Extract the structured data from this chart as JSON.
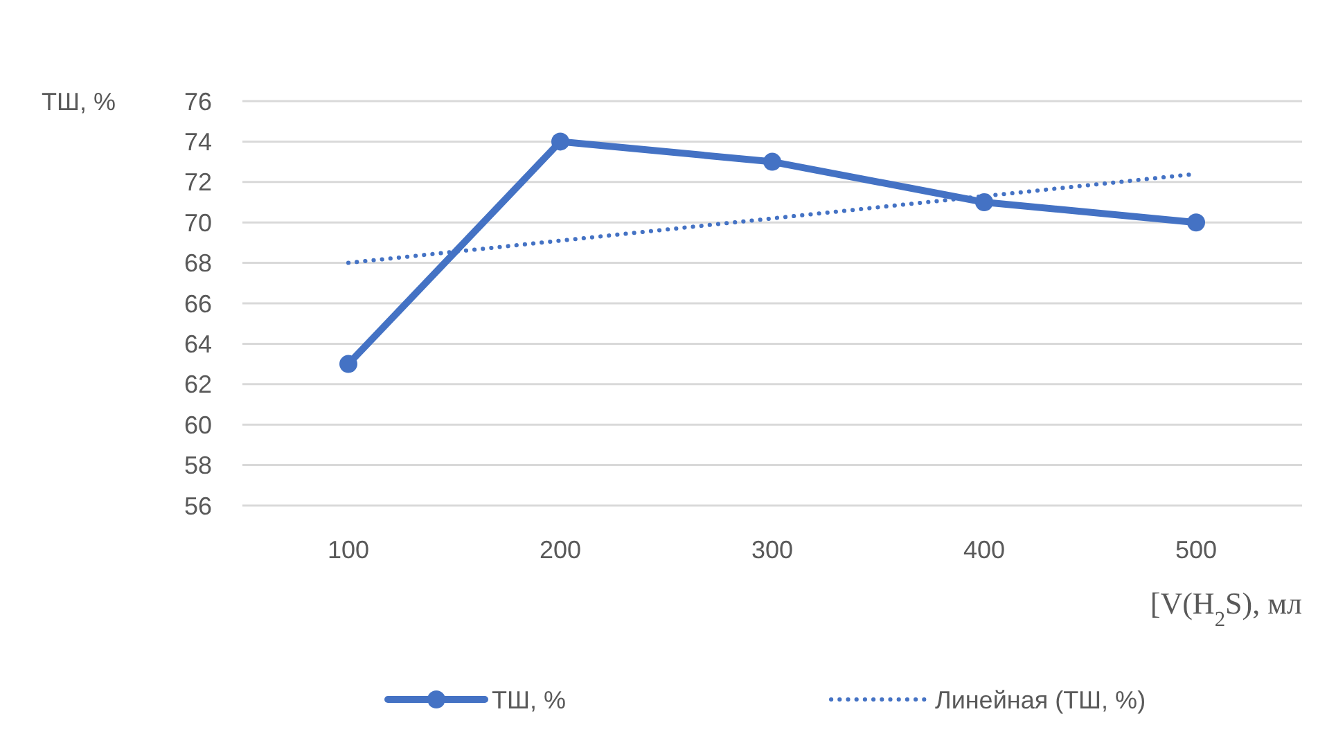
{
  "chart_data": {
    "type": "line",
    "ylabel": "ТШ, %",
    "xlabel": "[V(H$_{2}$S), мл",
    "categories": [
      "100",
      "200",
      "300",
      "400",
      "500"
    ],
    "series": [
      {
        "name": "ТШ, %",
        "color": "#4472c4",
        "values": [
          63,
          74,
          73,
          71,
          70
        ],
        "marker": "circle",
        "line_style": "solid"
      },
      {
        "name": "Линейная (ТШ, %)",
        "color": "#4472c4",
        "values": [
          68,
          69.1,
          70.2,
          71.3,
          72.4
        ],
        "marker": "none",
        "line_style": "dotted"
      }
    ],
    "ylim": [
      56,
      76
    ],
    "yticks": [
      56,
      58,
      60,
      62,
      64,
      66,
      68,
      70,
      72,
      74,
      76
    ],
    "grid": "y",
    "legend": "bottom"
  }
}
